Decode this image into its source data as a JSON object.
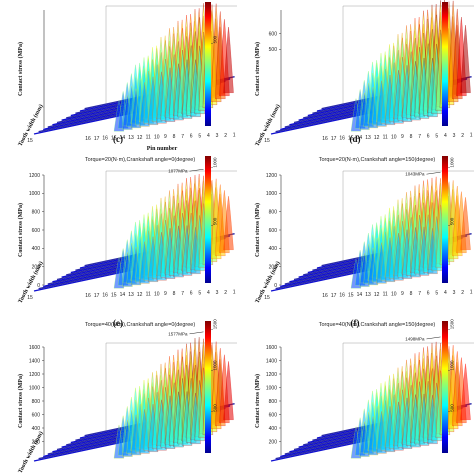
{
  "chart_data": [
    {
      "type": "surface3d",
      "panel": "",
      "title": "",
      "xlabel": "Pin number",
      "ylabel": "Tooth width (mm)",
      "zlabel": "Contact stress (MPa)",
      "xticks": [
        "16",
        "17",
        "16",
        "15",
        "14",
        "13",
        "12",
        "11",
        "10",
        "9",
        "8",
        "7",
        "6",
        "5",
        "4",
        "3",
        "2",
        "1"
      ],
      "yticks": [
        "15"
      ],
      "zticks": [],
      "colorbar_ticks": [
        "500"
      ],
      "colorbar_max": 750,
      "annotation": "",
      "peak_values": [
        0,
        0,
        0,
        0,
        0,
        0,
        0,
        0,
        380,
        420,
        480,
        540,
        590,
        630,
        660,
        690,
        720,
        700
      ]
    },
    {
      "type": "surface3d",
      "panel": "",
      "title": "",
      "xlabel": "",
      "ylabel": "Tooth width (mm)",
      "zlabel": "Contact stress (MPa)",
      "xticks": [
        "16",
        "17",
        "16",
        "15",
        "14",
        "13",
        "12",
        "11",
        "10",
        "9",
        "8",
        "7",
        "6",
        "5",
        "4",
        "3",
        "2",
        "1"
      ],
      "yticks": [
        "15"
      ],
      "zticks": [
        "500",
        "600"
      ],
      "colorbar_ticks": [],
      "colorbar_max": 750,
      "annotation": "",
      "peak_values": [
        0,
        0,
        0,
        0,
        0,
        0,
        0,
        0,
        400,
        450,
        500,
        560,
        610,
        650,
        690,
        720,
        740,
        720
      ]
    },
    {
      "type": "surface3d",
      "panel": "(c)",
      "title": "Torque=20(N·m),Crankshaft angle=0(degree)",
      "xlabel": "",
      "ylabel": "Tooth width (mm)",
      "zlabel": "Contact stress (MPa)",
      "xticks": [
        "16",
        "17",
        "16",
        "15",
        "14",
        "13",
        "12",
        "11",
        "10",
        "9",
        "8",
        "7",
        "6",
        "5",
        "4",
        "3",
        "2",
        "1"
      ],
      "yticks": [
        "15"
      ],
      "zticks": [
        "0",
        "200",
        "400",
        "600",
        "800",
        "1000",
        "1200"
      ],
      "colorbar_ticks": [
        "500",
        "1000"
      ],
      "colorbar_max": 1100,
      "annotation": "1077MPa",
      "peak_values": [
        0,
        0,
        0,
        0,
        0,
        0,
        0,
        0,
        650,
        720,
        800,
        880,
        950,
        1010,
        1060,
        1077,
        1050,
        980
      ]
    },
    {
      "type": "surface3d",
      "panel": "(d)",
      "title": "Torque=20(N·m),Crankshaft angle=150(degree)",
      "xlabel": "",
      "ylabel": "Tooth width (mm)",
      "zlabel": "Contact stress (MPa)",
      "xticks": [
        "16",
        "17",
        "16",
        "15",
        "14",
        "13",
        "12",
        "11",
        "10",
        "9",
        "8",
        "7",
        "6",
        "5",
        "4",
        "3",
        "2",
        "1"
      ],
      "yticks": [
        "15"
      ],
      "zticks": [
        "0",
        "200",
        "400",
        "600",
        "800",
        "1000",
        "1200"
      ],
      "colorbar_ticks": [
        "500",
        "1000"
      ],
      "colorbar_max": 1100,
      "annotation": "1043MPa",
      "peak_values": [
        0,
        0,
        0,
        0,
        0,
        0,
        0,
        0,
        620,
        700,
        780,
        860,
        930,
        990,
        1030,
        1043,
        1020,
        960
      ]
    },
    {
      "type": "surface3d",
      "panel": "(e)",
      "title": "Torque=40(N·m),Crankshaft angle=0(degree)",
      "xlabel": "",
      "ylabel": "Tooth width (mm)",
      "zlabel": "Contact stress (MPa)",
      "xticks": [],
      "yticks": [],
      "zticks": [
        "200",
        "400",
        "600",
        "800",
        "1000",
        "1200",
        "1400",
        "1600"
      ],
      "colorbar_ticks": [
        "500",
        "1000",
        "1500"
      ],
      "colorbar_max": 1600,
      "annotation": "1577MPa",
      "peak_values": [
        0,
        0,
        0,
        0,
        0,
        0,
        0,
        0,
        950,
        1050,
        1150,
        1260,
        1360,
        1440,
        1510,
        1577,
        1540,
        1450
      ]
    },
    {
      "type": "surface3d",
      "panel": "(f)",
      "title": "Torque=40(N·m),Crankshaft angle=150(degree)",
      "xlabel": "",
      "ylabel": "",
      "zlabel": "Contact stress (MPa)",
      "xticks": [],
      "yticks": [],
      "zticks": [
        "200",
        "400",
        "600",
        "800",
        "1000",
        "1200",
        "1400",
        "1600"
      ],
      "colorbar_ticks": [
        "500",
        "1000",
        "1500"
      ],
      "colorbar_max": 1600,
      "annotation": "1498MPa",
      "peak_values": [
        0,
        0,
        0,
        0,
        0,
        0,
        0,
        0,
        900,
        1000,
        1100,
        1200,
        1300,
        1380,
        1450,
        1498,
        1470,
        1390
      ]
    }
  ]
}
